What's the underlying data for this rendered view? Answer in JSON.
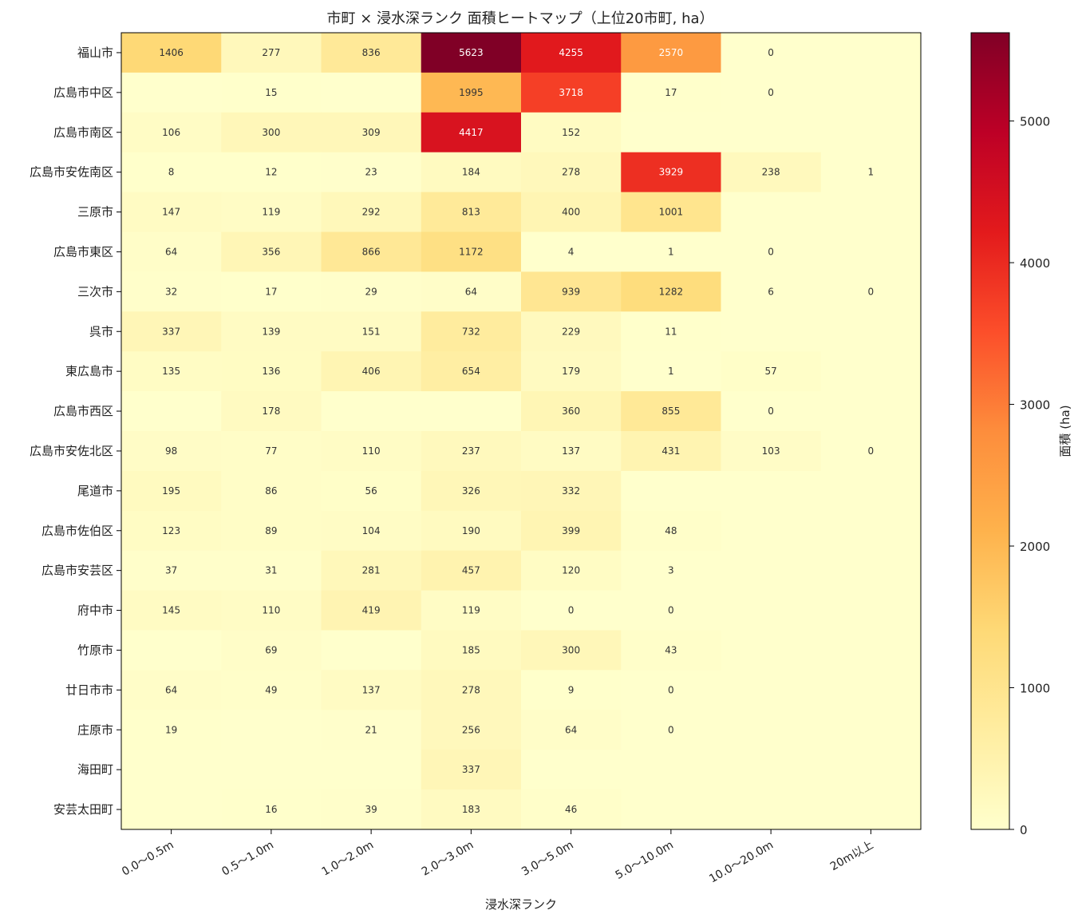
{
  "chart_data": {
    "type": "heatmap",
    "title": "市町 × 浸水深ランク 面積ヒートマップ（上位20市町, ha）",
    "xlabel": "浸水深ランク",
    "colorbar_label": "面積 (ha)",
    "colormap": "YlOrRd",
    "vmin": 0,
    "vmax": 5623,
    "colorbar_ticks": [
      0,
      1000,
      2000,
      3000,
      4000,
      5000
    ],
    "x": [
      "0.0〜0.5m",
      "0.5〜1.0m",
      "1.0〜2.0m",
      "2.0〜3.0m",
      "3.0〜5.0m",
      "5.0〜10.0m",
      "10.0〜20.0m",
      "20m以上"
    ],
    "y": [
      "福山市",
      "広島市中区",
      "広島市南区",
      "広島市安佐南区",
      "三原市",
      "広島市東区",
      "三次市",
      "呉市",
      "東広島市",
      "広島市西区",
      "広島市安佐北区",
      "尾道市",
      "広島市佐伯区",
      "広島市安芸区",
      "府中市",
      "竹原市",
      "廿日市市",
      "庄原市",
      "海田町",
      "安芸太田町"
    ],
    "values": [
      [
        1406,
        277,
        836,
        5623,
        4255,
        2570,
        0,
        null
      ],
      [
        null,
        15,
        null,
        1995,
        3718,
        17,
        0,
        null
      ],
      [
        106,
        300,
        309,
        4417,
        152,
        null,
        null,
        null
      ],
      [
        8,
        12,
        23,
        184,
        278,
        3929,
        238,
        1
      ],
      [
        147,
        119,
        292,
        813,
        400,
        1001,
        null,
        null
      ],
      [
        64,
        356,
        866,
        1172,
        4,
        1,
        0,
        null
      ],
      [
        32,
        17,
        29,
        64,
        939,
        1282,
        6,
        0
      ],
      [
        337,
        139,
        151,
        732,
        229,
        11,
        null,
        null
      ],
      [
        135,
        136,
        406,
        654,
        179,
        1,
        57,
        null
      ],
      [
        null,
        178,
        null,
        null,
        360,
        855,
        0,
        null
      ],
      [
        98,
        77,
        110,
        237,
        137,
        431,
        103,
        0
      ],
      [
        195,
        86,
        56,
        326,
        332,
        null,
        null,
        null
      ],
      [
        123,
        89,
        104,
        190,
        399,
        48,
        null,
        null
      ],
      [
        37,
        31,
        281,
        457,
        120,
        3,
        null,
        null
      ],
      [
        145,
        110,
        419,
        119,
        0,
        0,
        null,
        null
      ],
      [
        null,
        69,
        null,
        185,
        300,
        43,
        null,
        null
      ],
      [
        64,
        49,
        137,
        278,
        9,
        0,
        null,
        null
      ],
      [
        19,
        null,
        21,
        256,
        64,
        0,
        null,
        null
      ],
      [
        null,
        null,
        null,
        337,
        null,
        null,
        null,
        null
      ],
      [
        null,
        16,
        39,
        183,
        46,
        null,
        null,
        null
      ]
    ]
  }
}
